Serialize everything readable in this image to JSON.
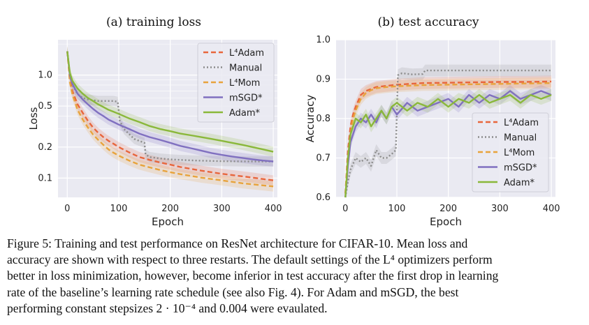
{
  "chart_data": [
    {
      "type": "line",
      "title": "(a) training loss",
      "xlabel": "Epoch",
      "ylabel": "Loss",
      "yscale": "log",
      "xlim": [
        -18,
        408
      ],
      "ylim": [
        0.065,
        2.2
      ],
      "xticks": [
        0,
        100,
        200,
        300,
        400
      ],
      "xtick_labels": [
        "0",
        "100",
        "200",
        "300",
        "400"
      ],
      "yticks": [
        1.0,
        0.5,
        0.2,
        0.1
      ],
      "ytick_labels": [
        "1.0",
        "0.5",
        "0.2",
        "0.1"
      ],
      "grid": true,
      "legend_position": "upper right",
      "series": [
        {
          "name": "L⁴Adam",
          "color": "#e8663c",
          "dash": "dashed",
          "x": [
            0,
            5,
            10,
            20,
            30,
            40,
            50,
            60,
            70,
            80,
            90,
            100,
            120,
            140,
            160,
            180,
            200,
            220,
            240,
            260,
            280,
            300,
            320,
            340,
            360,
            380,
            400
          ],
          "y": [
            1.7,
            0.9,
            0.7,
            0.52,
            0.43,
            0.36,
            0.31,
            0.275,
            0.25,
            0.23,
            0.215,
            0.2,
            0.178,
            0.16,
            0.15,
            0.142,
            0.135,
            0.128,
            0.123,
            0.118,
            0.114,
            0.11,
            0.107,
            0.104,
            0.101,
            0.098,
            0.095
          ]
        },
        {
          "name": "Manual",
          "color": "#8c8c8c",
          "dash": "dotted",
          "x": [
            0,
            5,
            10,
            20,
            30,
            40,
            50,
            60,
            70,
            80,
            90,
            98,
            102,
            110,
            130,
            150,
            152,
            160,
            180,
            200,
            220,
            250,
            300,
            350,
            400
          ],
          "y": [
            1.7,
            1.0,
            0.8,
            0.65,
            0.6,
            0.58,
            0.57,
            0.56,
            0.56,
            0.56,
            0.56,
            0.55,
            0.36,
            0.3,
            0.24,
            0.22,
            0.17,
            0.16,
            0.155,
            0.152,
            0.15,
            0.148,
            0.146,
            0.145,
            0.145
          ]
        },
        {
          "name": "L⁴Mom",
          "color": "#e8a33c",
          "dash": "dashed",
          "x": [
            0,
            5,
            10,
            20,
            30,
            40,
            50,
            60,
            70,
            80,
            90,
            100,
            120,
            140,
            160,
            180,
            200,
            220,
            240,
            260,
            280,
            300,
            320,
            340,
            360,
            380,
            400
          ],
          "y": [
            1.7,
            0.85,
            0.65,
            0.46,
            0.37,
            0.31,
            0.265,
            0.235,
            0.21,
            0.19,
            0.176,
            0.165,
            0.148,
            0.135,
            0.127,
            0.12,
            0.114,
            0.109,
            0.105,
            0.101,
            0.098,
            0.095,
            0.092,
            0.089,
            0.087,
            0.085,
            0.083
          ]
        },
        {
          "name": "mSGD*",
          "color": "#8070c0",
          "dash": "solid",
          "x": [
            0,
            5,
            10,
            20,
            30,
            40,
            50,
            60,
            70,
            80,
            90,
            100,
            120,
            140,
            160,
            180,
            200,
            220,
            240,
            260,
            280,
            300,
            320,
            340,
            360,
            380,
            400
          ],
          "y": [
            1.7,
            1.0,
            0.82,
            0.66,
            0.58,
            0.52,
            0.47,
            0.43,
            0.4,
            0.37,
            0.35,
            0.33,
            0.3,
            0.27,
            0.25,
            0.235,
            0.22,
            0.205,
            0.195,
            0.185,
            0.175,
            0.168,
            0.162,
            0.157,
            0.152,
            0.148,
            0.145
          ]
        },
        {
          "name": "Adam*",
          "color": "#8ab83a",
          "dash": "solid",
          "x": [
            0,
            5,
            10,
            20,
            30,
            40,
            50,
            60,
            70,
            80,
            90,
            100,
            120,
            140,
            160,
            180,
            200,
            220,
            240,
            260,
            280,
            300,
            320,
            340,
            360,
            380,
            400
          ],
          "y": [
            1.7,
            1.05,
            0.88,
            0.74,
            0.66,
            0.6,
            0.56,
            0.52,
            0.49,
            0.46,
            0.44,
            0.42,
            0.38,
            0.35,
            0.32,
            0.3,
            0.285,
            0.27,
            0.26,
            0.25,
            0.24,
            0.23,
            0.22,
            0.21,
            0.2,
            0.19,
            0.18
          ]
        }
      ]
    },
    {
      "type": "line",
      "title": "(b) test accuracy",
      "xlabel": "Epoch",
      "ylabel": "Accuracy",
      "xlim": [
        -18,
        408
      ],
      "ylim": [
        0.6,
        1.0
      ],
      "xticks": [
        0,
        100,
        200,
        300,
        400
      ],
      "xtick_labels": [
        "0",
        "100",
        "200",
        "300",
        "400"
      ],
      "yticks": [
        0.6,
        0.7,
        0.8,
        0.9,
        1.0
      ],
      "ytick_labels": [
        "0.6",
        "0.7",
        "0.8",
        "0.9",
        "1.0"
      ],
      "grid": true,
      "legend_position": "lower right",
      "series": [
        {
          "name": "L⁴Adam",
          "color": "#e8663c",
          "dash": "dashed",
          "x": [
            0,
            5,
            10,
            15,
            20,
            30,
            40,
            50,
            60,
            80,
            100,
            150,
            200,
            250,
            300,
            350,
            400
          ],
          "y": [
            0.61,
            0.72,
            0.78,
            0.81,
            0.83,
            0.86,
            0.87,
            0.875,
            0.88,
            0.883,
            0.886,
            0.89,
            0.891,
            0.892,
            0.893,
            0.893,
            0.894
          ]
        },
        {
          "name": "Manual",
          "color": "#8c8c8c",
          "dash": "dotted",
          "x": [
            0,
            5,
            10,
            20,
            30,
            40,
            50,
            60,
            70,
            80,
            90,
            98,
            102,
            110,
            130,
            150,
            155,
            200,
            250,
            300,
            350,
            400
          ],
          "y": [
            0.6,
            0.64,
            0.67,
            0.7,
            0.69,
            0.7,
            0.68,
            0.72,
            0.7,
            0.7,
            0.71,
            0.72,
            0.91,
            0.915,
            0.912,
            0.913,
            0.922,
            0.922,
            0.922,
            0.922,
            0.922,
            0.922
          ]
        },
        {
          "name": "L⁴Mom",
          "color": "#e8a33c",
          "dash": "dashed",
          "x": [
            0,
            5,
            10,
            15,
            20,
            30,
            40,
            50,
            60,
            80,
            100,
            150,
            200,
            250,
            300,
            350,
            400
          ],
          "y": [
            0.61,
            0.7,
            0.76,
            0.8,
            0.82,
            0.85,
            0.865,
            0.872,
            0.877,
            0.88,
            0.882,
            0.885,
            0.886,
            0.887,
            0.888,
            0.889,
            0.89
          ]
        },
        {
          "name": "mSGD*",
          "color": "#8070c0",
          "dash": "solid",
          "x": [
            0,
            5,
            10,
            20,
            30,
            40,
            50,
            60,
            70,
            80,
            90,
            100,
            120,
            140,
            160,
            180,
            200,
            220,
            240,
            260,
            280,
            300,
            320,
            340,
            360,
            380,
            400
          ],
          "y": [
            0.6,
            0.68,
            0.74,
            0.78,
            0.8,
            0.79,
            0.81,
            0.79,
            0.82,
            0.8,
            0.83,
            0.81,
            0.84,
            0.82,
            0.83,
            0.84,
            0.85,
            0.83,
            0.86,
            0.84,
            0.86,
            0.85,
            0.87,
            0.85,
            0.86,
            0.87,
            0.86
          ]
        },
        {
          "name": "Adam*",
          "color": "#8ab83a",
          "dash": "solid",
          "x": [
            0,
            5,
            10,
            20,
            30,
            40,
            50,
            60,
            70,
            80,
            90,
            100,
            120,
            140,
            160,
            180,
            200,
            220,
            240,
            260,
            280,
            300,
            320,
            340,
            360,
            380,
            400
          ],
          "y": [
            0.6,
            0.7,
            0.76,
            0.8,
            0.79,
            0.81,
            0.78,
            0.8,
            0.82,
            0.8,
            0.83,
            0.84,
            0.82,
            0.84,
            0.83,
            0.85,
            0.83,
            0.85,
            0.84,
            0.86,
            0.84,
            0.85,
            0.86,
            0.84,
            0.86,
            0.85,
            0.86
          ]
        }
      ]
    }
  ],
  "caption": {
    "lines": [
      "Figure 5: Training and test performance on ResNet architecture for CIFAR-10. Mean loss and",
      "accuracy are shown with respect to three restarts. The default settings of the L⁴ optimizers perform",
      "better in loss minimization, however, become inferior in test accuracy after the first drop in learning",
      "rate of the baseline’s learning rate schedule (see also Fig. 4). For Adam and mSGD, the best",
      "performing constant stepsizes 2 · 10⁻⁴ and 0.004 were evaulated."
    ]
  }
}
